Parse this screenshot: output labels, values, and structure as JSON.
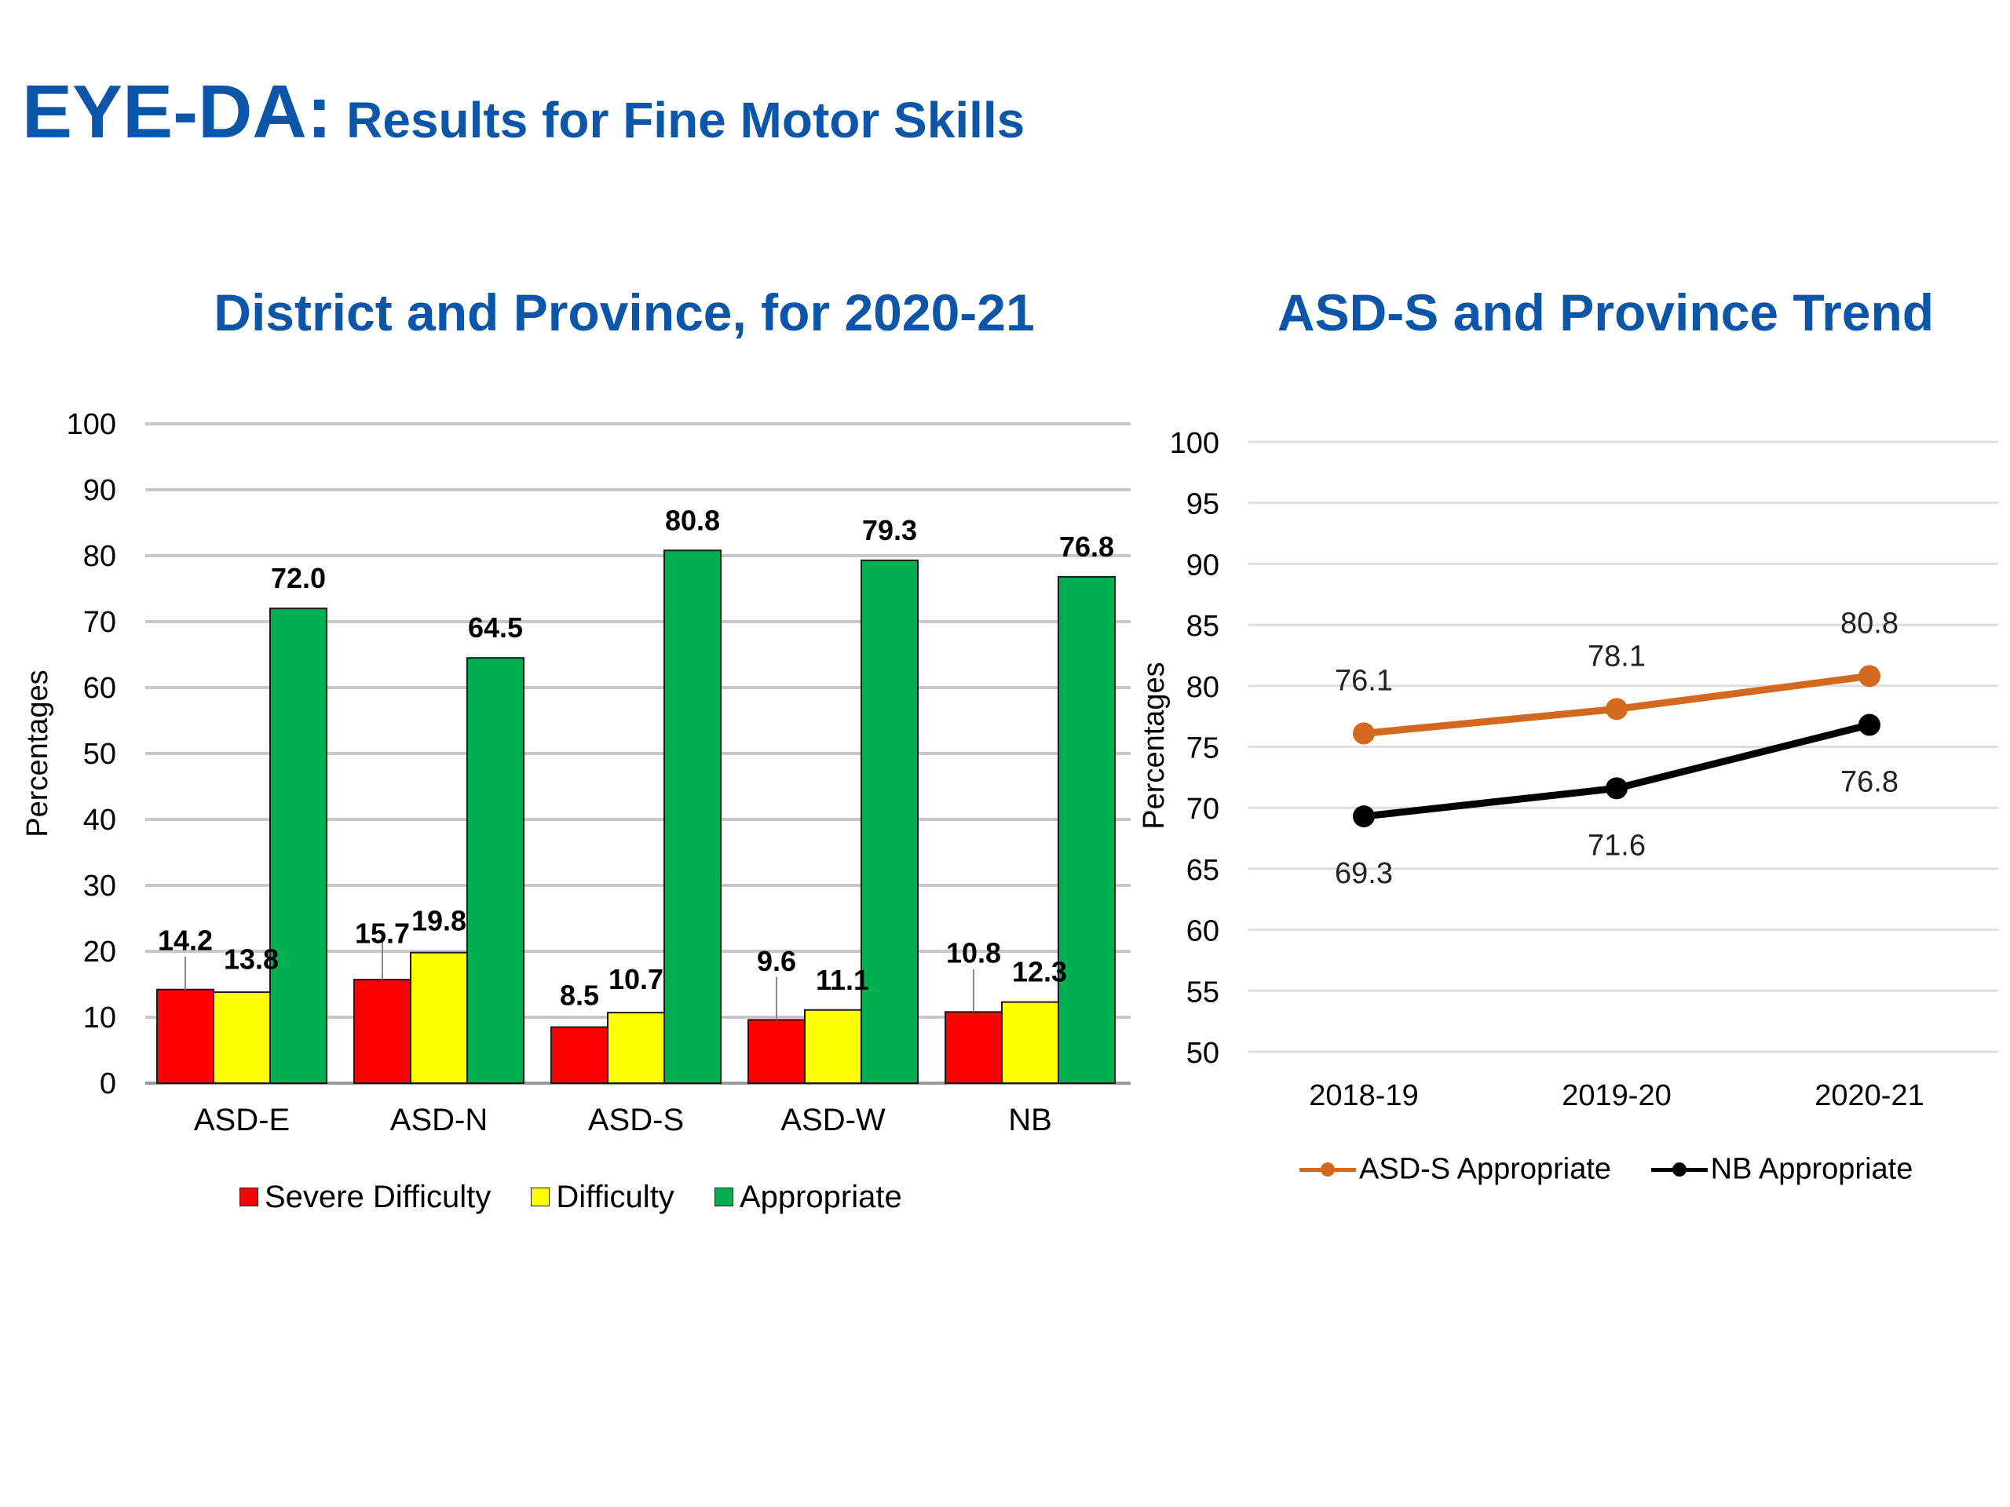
{
  "header": {
    "title_main": "EYE-DA:",
    "title_sub": "Results for Fine Motor Skills"
  },
  "colors": {
    "title": "#0b56a8",
    "severe": "#ff0000",
    "difficulty": "#ffff00",
    "appropriate": "#00b050",
    "asd_s_line": "#d2691e",
    "nb_line": "#000000"
  },
  "chart_data": [
    {
      "type": "bar",
      "title": "District and Province, for 2020-21",
      "ylabel": "Percentages",
      "xlabel": "",
      "ylim": [
        0,
        100
      ],
      "yticks": [
        0,
        10,
        20,
        30,
        40,
        50,
        60,
        70,
        80,
        90,
        100
      ],
      "grid": true,
      "legend_position": "bottom",
      "categories": [
        "ASD-E",
        "ASD-N",
        "ASD-S",
        "ASD-W",
        "NB"
      ],
      "series": [
        {
          "name": "Severe Difficulty",
          "values": [
            14.2,
            15.7,
            8.5,
            9.6,
            10.8
          ]
        },
        {
          "name": "Difficulty",
          "values": [
            13.8,
            19.8,
            10.7,
            11.1,
            12.3
          ]
        },
        {
          "name": "Appropriate",
          "values": [
            72.0,
            64.5,
            80.8,
            79.3,
            76.8
          ]
        }
      ]
    },
    {
      "type": "line",
      "title": "ASD-S and Province Trend",
      "ylabel": "Percentages",
      "xlabel": "",
      "ylim": [
        50,
        100
      ],
      "yticks": [
        50,
        55,
        60,
        65,
        70,
        75,
        80,
        85,
        90,
        95,
        100
      ],
      "grid": true,
      "legend_position": "bottom",
      "x": [
        "2018-19",
        "2019-20",
        "2020-21"
      ],
      "series": [
        {
          "name": "ASD-S Appropriate",
          "values": [
            76.1,
            78.1,
            80.8
          ]
        },
        {
          "name": "NB Appropriate",
          "values": [
            69.3,
            71.6,
            76.8
          ]
        }
      ]
    }
  ]
}
